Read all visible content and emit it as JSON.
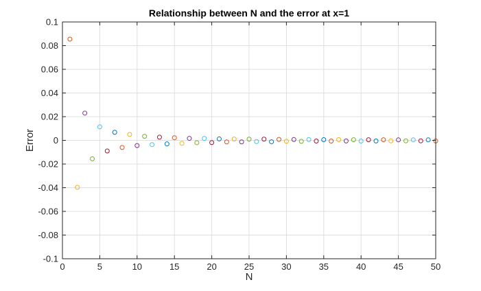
{
  "chart_data": {
    "type": "scatter",
    "title": "Relationship between N and the error at x=1",
    "xlabel": "N",
    "ylabel": "Error",
    "xlim": [
      0,
      50
    ],
    "ylim": [
      -0.1,
      0.1
    ],
    "xticks": [
      "0",
      "5",
      "10",
      "15",
      "20",
      "25",
      "30",
      "35",
      "40",
      "45",
      "50"
    ],
    "yticks": [
      "-0.1",
      "-0.08",
      "-0.06",
      "-0.04",
      "-0.02",
      "0",
      "0.02",
      "0.04",
      "0.06",
      "0.08",
      "0.1"
    ],
    "grid": true,
    "marker": "open-circle",
    "colors": [
      "#0072BD",
      "#D95319",
      "#EDB120",
      "#7E2F8E",
      "#77AC30",
      "#4DBEEE",
      "#A2142F"
    ],
    "x": [
      1,
      2,
      3,
      4,
      5,
      6,
      7,
      8,
      9,
      10,
      11,
      12,
      13,
      14,
      15,
      16,
      17,
      18,
      19,
      20,
      21,
      22,
      23,
      24,
      25,
      26,
      27,
      28,
      29,
      30,
      31,
      32,
      33,
      34,
      35,
      36,
      37,
      38,
      39,
      40,
      41,
      42,
      43,
      44,
      45,
      46,
      47,
      48,
      49,
      50
    ],
    "values": [
      0.0855,
      -0.0397,
      0.023,
      -0.0156,
      0.0114,
      -0.009,
      0.0068,
      -0.006,
      0.005,
      -0.0044,
      0.0034,
      -0.0036,
      0.0027,
      -0.003,
      0.0022,
      -0.0025,
      0.0017,
      -0.002,
      0.0016,
      -0.0019,
      0.0012,
      -0.0013,
      0.0011,
      -0.0013,
      0.001,
      -0.001,
      0.001,
      -0.0012,
      0.0008,
      -0.0008,
      0.0007,
      -0.0008,
      0.0007,
      -0.0006,
      0.0006,
      -0.0006,
      0.0006,
      -0.0005,
      0.0005,
      -0.0006,
      0.0005,
      -0.0005,
      0.0005,
      -0.0004,
      0.0004,
      -0.0004,
      0.0004,
      -0.0004,
      0.0004,
      -0.0005
    ]
  }
}
